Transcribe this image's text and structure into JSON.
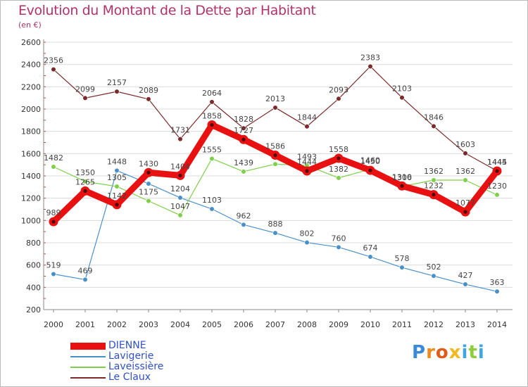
{
  "header": {
    "title": "Evolution du Montant de la Dette par Habitant",
    "subtitle": "(en €)"
  },
  "brand": {
    "letters": [
      "P",
      "r",
      "o",
      "x",
      "i",
      "t",
      "i"
    ],
    "colors": [
      "#3a8ad6",
      "#f08a1c",
      "#e05a18",
      "#f2b81c",
      "#3fa6e0",
      "#8ccd3a",
      "#3fa6e0"
    ]
  },
  "chart_data": {
    "type": "line",
    "title": "Evolution du Montant de la Dette par Habitant",
    "ylabel": "(en €)",
    "xlabel": "",
    "ylim": [
      200,
      2600
    ],
    "yticks": [
      200,
      400,
      600,
      800,
      1000,
      1200,
      1400,
      1600,
      1800,
      2000,
      2200,
      2400,
      2600
    ],
    "x": [
      "2000",
      "2001",
      "2002",
      "2003",
      "2004",
      "2005",
      "2006",
      "2007",
      "2008",
      "2009",
      "2010",
      "2011",
      "2012",
      "2013",
      "2014"
    ],
    "grid": "horizontal",
    "legend_position": "bottom-left",
    "series": [
      {
        "name": "DIENNE",
        "color": "#e81010",
        "emphasis": true,
        "values": [
          989,
          1265,
          1142,
          1430,
          1404,
          1858,
          1727,
          1586,
          1444,
          1558,
          1450,
          1310,
          1232,
          1077,
          1444
        ],
        "labels": [
          "989",
          "1265",
          "1142",
          "1430",
          "1404",
          "1858",
          "1727",
          "1586",
          "1444",
          "1558",
          "1450",
          "1310",
          "1232",
          "1077",
          "1444"
        ]
      },
      {
        "name": "Lavigerie",
        "color": "#4a90c8",
        "emphasis": false,
        "values": [
          519,
          469,
          1448,
          1330,
          1204,
          1103,
          962,
          888,
          802,
          760,
          674,
          578,
          502,
          427,
          363
        ],
        "labels": [
          "519",
          "469",
          "1448",
          "",
          "1204",
          "1103",
          "962",
          "888",
          "802",
          "760",
          "674",
          "578",
          "502",
          "427",
          "363"
        ]
      },
      {
        "name": "Laveissière",
        "color": "#7ecf4a",
        "emphasis": false,
        "values": [
          1482,
          1350,
          1305,
          1175,
          1047,
          1555,
          1439,
          1506,
          1493,
          1382,
          1460,
          1306,
          1362,
          1362,
          1230
        ],
        "labels": [
          "1482",
          "1350",
          "1305",
          "1175",
          "1047",
          "1555",
          "1439",
          "",
          "1493",
          "1382",
          "1460",
          "1306",
          "1362",
          "1362",
          "1230"
        ]
      },
      {
        "name": "Le Claux",
        "color": "#7a2a2a",
        "emphasis": false,
        "values": [
          2356,
          2099,
          2157,
          2089,
          1731,
          2064,
          1828,
          2013,
          1844,
          2093,
          2383,
          2103,
          1846,
          1603,
          1445
        ],
        "labels": [
          "2356",
          "2099",
          "2157",
          "2089",
          "1731",
          "2064",
          "1828",
          "2013",
          "1844",
          "2093",
          "2383",
          "2103",
          "1846",
          "1603",
          "1445"
        ]
      }
    ]
  }
}
